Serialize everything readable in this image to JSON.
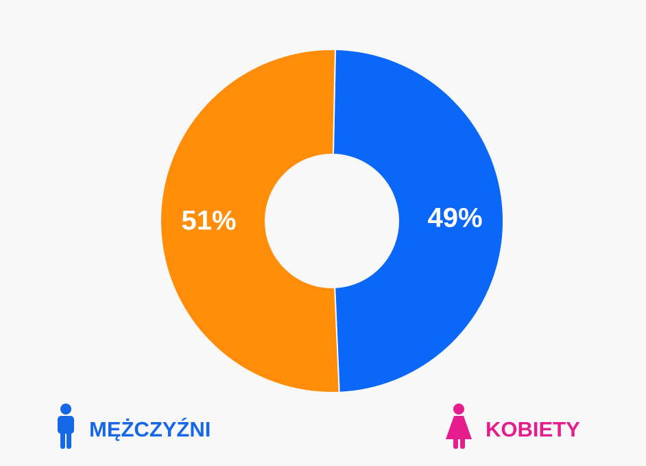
{
  "chart_data": {
    "type": "pie",
    "donut": true,
    "categories": [
      "MĘŻCZYŹNI",
      "KOBIETY"
    ],
    "values": [
      49,
      51
    ],
    "value_labels": [
      "49%",
      "51%"
    ],
    "colors": [
      "#0a67f7",
      "#ff8d0a"
    ],
    "legend_colors": [
      "#1668e8",
      "#e61d8c"
    ]
  }
}
